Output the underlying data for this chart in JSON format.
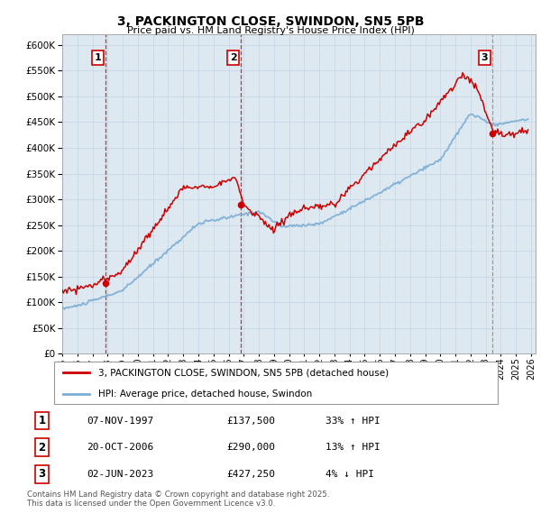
{
  "title1": "3, PACKINGTON CLOSE, SWINDON, SN5 5PB",
  "title2": "Price paid vs. HM Land Registry's House Price Index (HPI)",
  "legend_red": "3, PACKINGTON CLOSE, SWINDON, SN5 5PB (detached house)",
  "legend_blue": "HPI: Average price, detached house, Swindon",
  "transactions": [
    {
      "label": "1",
      "date": "07-NOV-1997",
      "price": "£137,500",
      "hpi_rel": "33% ↑ HPI",
      "year": 1997.85,
      "value": 137500
    },
    {
      "label": "2",
      "date": "20-OCT-2006",
      "price": "£290,000",
      "hpi_rel": "13% ↑ HPI",
      "year": 2006.8,
      "value": 290000
    },
    {
      "label": "3",
      "date": "02-JUN-2023",
      "price": "£427,250",
      "hpi_rel": "4% ↓ HPI",
      "year": 2023.42,
      "value": 427250
    }
  ],
  "footer": "Contains HM Land Registry data © Crown copyright and database right 2025.\nThis data is licensed under the Open Government Licence v3.0.",
  "ylim": [
    0,
    620000
  ],
  "xlim_start": 1995.0,
  "xlim_end": 2026.3,
  "red_color": "#cc0000",
  "blue_color": "#7aadd4",
  "grid_color": "#c8d8e8",
  "bg_color": "#dde8f0",
  "plot_bg": "#dde8f0",
  "dashed_color_red": "#cc0000",
  "dashed_color_grey": "#888888"
}
